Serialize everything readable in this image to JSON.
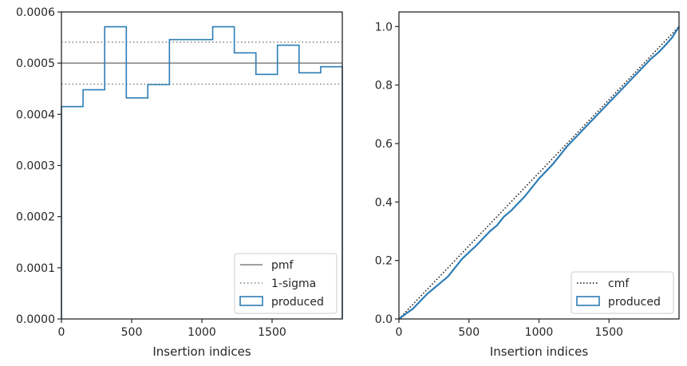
{
  "colors": {
    "produced": "#2e7db5",
    "pmf": "#808080",
    "sigma": "#808080",
    "cmf": "#111111",
    "axis": "#262626"
  },
  "chart_data": [
    {
      "type": "histogram-step",
      "xlabel": "Insertion indices",
      "ylabel": "",
      "xlim": [
        0,
        2000
      ],
      "ylim": [
        0,
        0.0006
      ],
      "xticks": [
        0,
        500,
        1000,
        1500
      ],
      "xtick_labels": [
        "0",
        "500",
        "1000",
        "1500"
      ],
      "yticks": [
        0,
        0.0001,
        0.0002,
        0.0003,
        0.0004,
        0.0005,
        0.0006
      ],
      "ytick_labels": [
        "0.0000",
        "0.0001",
        "0.0002",
        "0.0003",
        "0.0004",
        "0.0005",
        "0.0006"
      ],
      "bin_edges": [
        0,
        154,
        308,
        462,
        615,
        769,
        1077,
        1231,
        1385,
        1538,
        1692,
        1846,
        2000
      ],
      "series": [
        {
          "name": "pmf",
          "style": "solid",
          "value": 0.0005
        },
        {
          "name": "1-sigma",
          "style": "dotted",
          "values": [
            0.000459,
            0.000541
          ]
        },
        {
          "name": "produced",
          "style": "step",
          "values": [
            0.000415,
            0.000448,
            0.000571,
            0.000432,
            0.000458,
            0.000546,
            0.000571,
            0.00052,
            0.000478,
            0.000535,
            0.000481,
            0.000493
          ]
        }
      ],
      "legend": {
        "position": "bottom-right",
        "entries": [
          "pmf",
          "1-sigma",
          "produced"
        ]
      }
    },
    {
      "type": "line",
      "xlabel": "Insertion indices",
      "ylabel": "",
      "xlim": [
        0,
        2000
      ],
      "ylim": [
        0,
        1.05
      ],
      "xticks": [
        0,
        500,
        1000,
        1500
      ],
      "xtick_labels": [
        "0",
        "500",
        "1000",
        "1500"
      ],
      "yticks": [
        0,
        0.2,
        0.4,
        0.6,
        0.8,
        1.0
      ],
      "ytick_labels": [
        "0.0",
        "0.2",
        "0.4",
        "0.6",
        "0.8",
        "1.0"
      ],
      "series": [
        {
          "name": "cmf",
          "style": "dotted",
          "x": [
            0,
            2000
          ],
          "y": [
            0,
            1.0
          ]
        },
        {
          "name": "produced",
          "style": "solid",
          "x": [
            0,
            50,
            100,
            150,
            200,
            250,
            300,
            350,
            400,
            450,
            500,
            550,
            600,
            650,
            700,
            750,
            800,
            850,
            900,
            950,
            1000,
            1050,
            1100,
            1150,
            1200,
            1250,
            1300,
            1350,
            1400,
            1450,
            1500,
            1550,
            1600,
            1650,
            1700,
            1750,
            1800,
            1850,
            1900,
            1950,
            2000
          ],
          "y": [
            0,
            0.018,
            0.035,
            0.06,
            0.085,
            0.105,
            0.125,
            0.145,
            0.175,
            0.205,
            0.228,
            0.25,
            0.275,
            0.3,
            0.32,
            0.35,
            0.37,
            0.395,
            0.42,
            0.45,
            0.48,
            0.505,
            0.53,
            0.56,
            0.59,
            0.615,
            0.64,
            0.665,
            0.69,
            0.715,
            0.74,
            0.765,
            0.79,
            0.815,
            0.84,
            0.865,
            0.89,
            0.91,
            0.935,
            0.962,
            1.0
          ]
        }
      ],
      "legend": {
        "position": "bottom-right",
        "entries": [
          "cmf",
          "produced"
        ]
      }
    }
  ]
}
